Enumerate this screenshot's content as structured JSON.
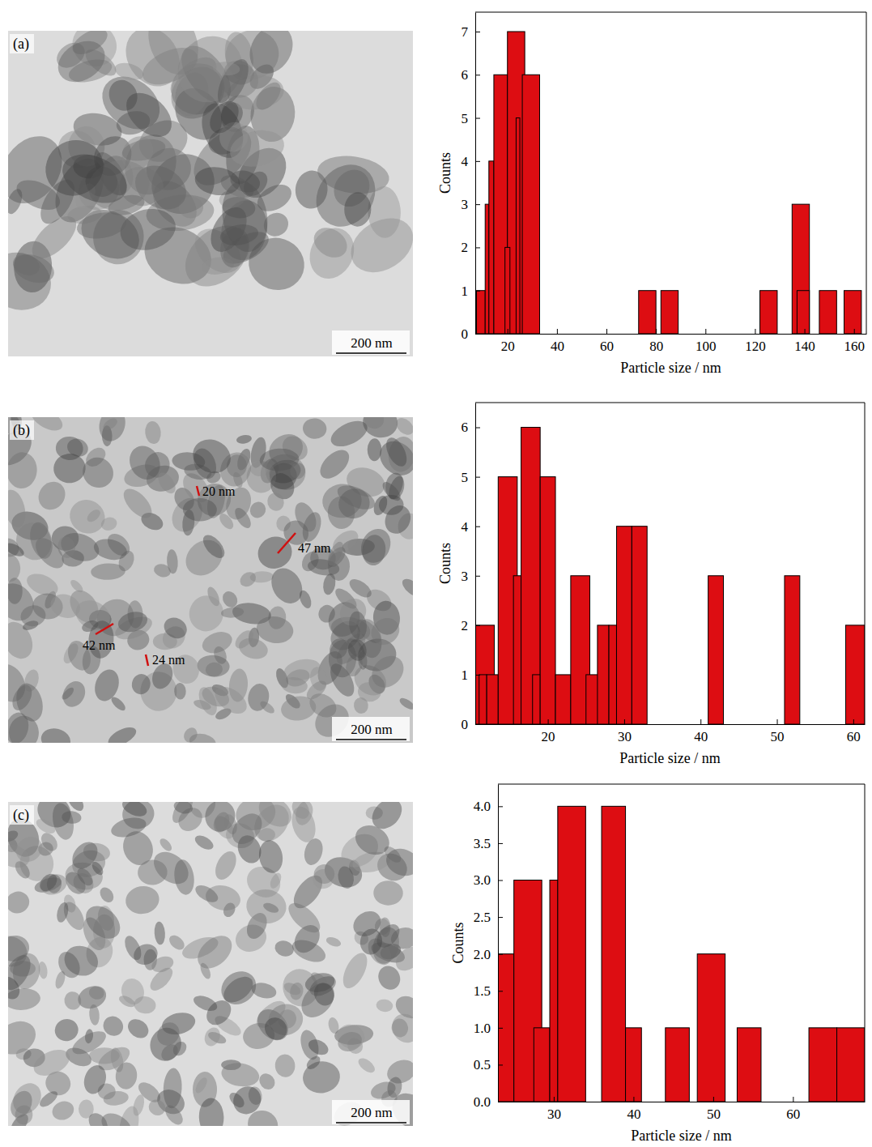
{
  "chart_data": [
    {
      "type": "histogram",
      "x_label": "Particle size / nm",
      "y_label": "Counts",
      "color": "#dd0d12",
      "x0": [
        7.5,
        11,
        12.5,
        14.5,
        20,
        23.5,
        19,
        26,
        73,
        82,
        122,
        135,
        137,
        146,
        156
      ],
      "x1": [
        11,
        12.5,
        14.5,
        20,
        27,
        25,
        21,
        33,
        80,
        89,
        129,
        142,
        142,
        153,
        163
      ],
      "values": [
        1,
        3,
        4,
        6,
        7,
        5,
        2,
        6,
        1,
        1,
        1,
        3,
        1,
        1,
        1
      ],
      "xlim": [
        7,
        165
      ],
      "xticks": [
        20,
        40,
        60,
        80,
        100,
        120,
        140,
        160
      ],
      "ylim": [
        0,
        7.45
      ],
      "yticks": [
        0,
        1,
        2,
        3,
        4,
        5,
        6,
        7
      ]
    },
    {
      "type": "histogram",
      "x_label": "Particle size / nm",
      "y_label": "Counts",
      "color": "#dd0d12",
      "x0": [
        10.5,
        11,
        12,
        13.5,
        15.5,
        16.5,
        18,
        19,
        21,
        23,
        25,
        26.5,
        28,
        29,
        31,
        41,
        51,
        59
      ],
      "x1": [
        13,
        12,
        13.5,
        16,
        16.5,
        19,
        19,
        21,
        23,
        25.5,
        27,
        28,
        29,
        31,
        33,
        43,
        53,
        61.5
      ],
      "values": [
        2,
        1,
        1,
        5,
        3,
        6,
        1,
        5,
        1,
        3,
        1,
        2,
        2,
        4,
        4,
        3,
        3,
        2
      ],
      "xlim": [
        10.5,
        61.5
      ],
      "xticks": [
        20,
        30,
        40,
        50,
        60
      ],
      "ylim": [
        0,
        6.5
      ],
      "yticks": [
        0,
        1,
        2,
        3,
        4,
        5,
        6
      ]
    },
    {
      "type": "histogram",
      "x_label": "Particle size / nm",
      "y_label": "Counts",
      "color": "#dd0d12",
      "x0": [
        23,
        25,
        27.5,
        29.5,
        30.5,
        36,
        39,
        44,
        48,
        53,
        62,
        65.5
      ],
      "x1": [
        25,
        28.5,
        29.5,
        30.5,
        34,
        39,
        41,
        47,
        51.5,
        56,
        65.5,
        69
      ],
      "values": [
        2,
        3,
        1,
        3,
        4,
        4,
        1,
        1,
        2,
        1,
        1,
        1
      ],
      "xlim": [
        23,
        69
      ],
      "xticks": [
        30,
        40,
        50,
        60
      ],
      "ylim": [
        0,
        4.3
      ],
      "yticks": [
        {
          "value": 0,
          "label": "0.0"
        },
        {
          "value": 0.5,
          "label": "0.5"
        },
        {
          "value": 1,
          "label": "1.0"
        },
        {
          "value": 1.5,
          "label": "1.5"
        },
        {
          "value": 2,
          "label": "2.0"
        },
        {
          "value": 2.5,
          "label": "2.5"
        },
        {
          "value": 3,
          "label": "3.0"
        },
        {
          "value": 3.5,
          "label": "3.5"
        },
        {
          "value": 4,
          "label": "4.0"
        }
      ]
    }
  ],
  "micrographs": [
    {
      "label": "(a)",
      "scale_bar": "200 nm"
    },
    {
      "label": "(b)",
      "scale_bar": "200 nm",
      "annotations": [
        "20 nm",
        "47 nm",
        "42 nm",
        "24 nm"
      ]
    },
    {
      "label": "(c)",
      "scale_bar": "200 nm"
    }
  ]
}
